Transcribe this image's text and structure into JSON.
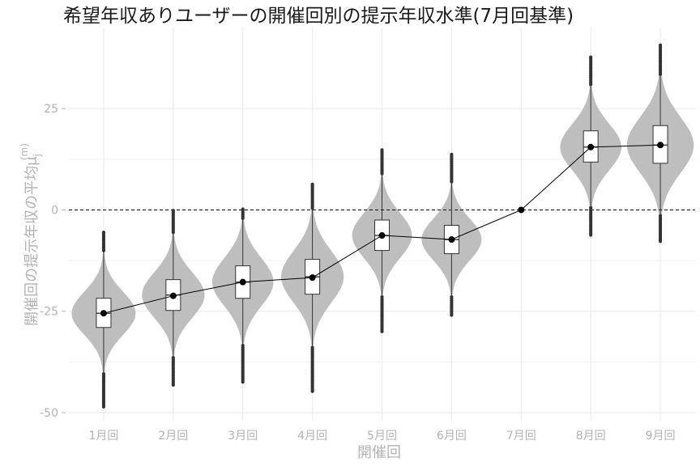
{
  "chart_data": {
    "type": "violin",
    "title": "希望年収ありユーザーの開催回別の提示年収水準(7月回基準)",
    "xlabel": "開催回",
    "ylabel": "開催回の提示年収の平均μ",
    "ylabel_sup": "(m)",
    "ylabel_sub": "j",
    "categories": [
      "1月回",
      "2月回",
      "3月回",
      "4月回",
      "5月回",
      "6月回",
      "7月回",
      "8月回",
      "9月回"
    ],
    "ylim": [
      -52,
      45
    ],
    "yticks": [
      -50,
      -25,
      0,
      25
    ],
    "ytick_labels": [
      "-50",
      "-25",
      "0",
      "25"
    ],
    "reference_line": 0,
    "grid": true,
    "colors": {
      "violin": "#bebebe",
      "box": "#ffffff",
      "line": "#000000",
      "points": "#000000",
      "grid": "#ebebeb"
    },
    "series": [
      {
        "category": "1月回",
        "mean": -25.5,
        "q1": -29.0,
        "median": -25.5,
        "q3": -21.8,
        "whisker_low": -40.0,
        "whisker_high": -10.5,
        "min": -49.0,
        "max": -5.5,
        "width": 0.46
      },
      {
        "category": "2月回",
        "mean": -21.2,
        "q1": -24.8,
        "median": -21.0,
        "q3": -17.2,
        "whisker_low": -36.0,
        "whisker_high": -6.0,
        "min": -43.5,
        "max": 0.0,
        "width": 0.45
      },
      {
        "category": "3月回",
        "mean": -17.8,
        "q1": -21.8,
        "median": -17.8,
        "q3": -13.8,
        "whisker_low": -33.0,
        "whisker_high": -2.5,
        "min": -42.5,
        "max": 0.5,
        "width": 0.44
      },
      {
        "category": "4月回",
        "mean": -16.7,
        "q1": -20.8,
        "median": -16.5,
        "q3": -12.2,
        "whisker_low": -33.5,
        "whisker_high": 0.0,
        "min": -45.0,
        "max": 6.5,
        "width": 0.45
      },
      {
        "category": "5月回",
        "mean": -6.3,
        "q1": -10.0,
        "median": -6.3,
        "q3": -2.5,
        "whisker_low": -21.0,
        "whisker_high": 8.5,
        "min": -30.0,
        "max": 15.0,
        "width": 0.43
      },
      {
        "category": "6月回",
        "mean": -7.3,
        "q1": -10.8,
        "median": -7.3,
        "q3": -3.8,
        "whisker_low": -21.0,
        "whisker_high": 6.5,
        "min": -26.0,
        "max": 14.0,
        "width": 0.43
      },
      {
        "category": "7月回",
        "mean": 0.0,
        "q1": 0.0,
        "median": 0.0,
        "q3": 0.0,
        "whisker_low": 0.0,
        "whisker_high": 0.0,
        "min": 0.0,
        "max": 0.0,
        "width": 0.0
      },
      {
        "category": "8月回",
        "mean": 15.5,
        "q1": 11.8,
        "median": 15.5,
        "q3": 19.5,
        "whisker_low": 1.0,
        "whisker_high": 30.5,
        "min": -6.5,
        "max": 38.0,
        "width": 0.44
      },
      {
        "category": "9月回",
        "mean": 16.0,
        "q1": 11.5,
        "median": 16.0,
        "q3": 20.8,
        "whisker_low": -1.0,
        "whisker_high": 33.0,
        "min": -8.0,
        "max": 41.0,
        "width": 0.48
      }
    ]
  }
}
